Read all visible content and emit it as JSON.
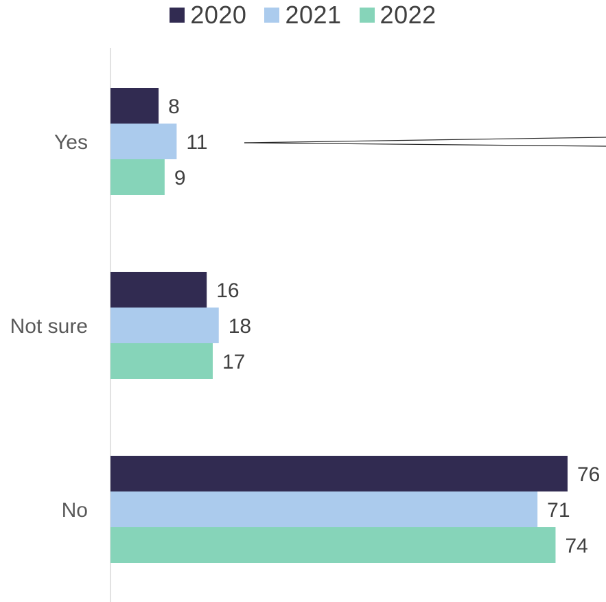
{
  "chart_data": {
    "type": "bar",
    "orientation": "horizontal",
    "categories": [
      "Yes",
      "Not sure",
      "No"
    ],
    "series": [
      {
        "name": "2020",
        "color": "#312b51",
        "values": [
          8,
          16,
          76
        ]
      },
      {
        "name": "2021",
        "color": "#abcbed",
        "values": [
          11,
          18,
          71
        ]
      },
      {
        "name": "2022",
        "color": "#86d4b9",
        "values": [
          9,
          17,
          74
        ]
      }
    ],
    "xlim": [
      0,
      76
    ],
    "data_labels": true,
    "grid": false,
    "legend_position": "top"
  }
}
